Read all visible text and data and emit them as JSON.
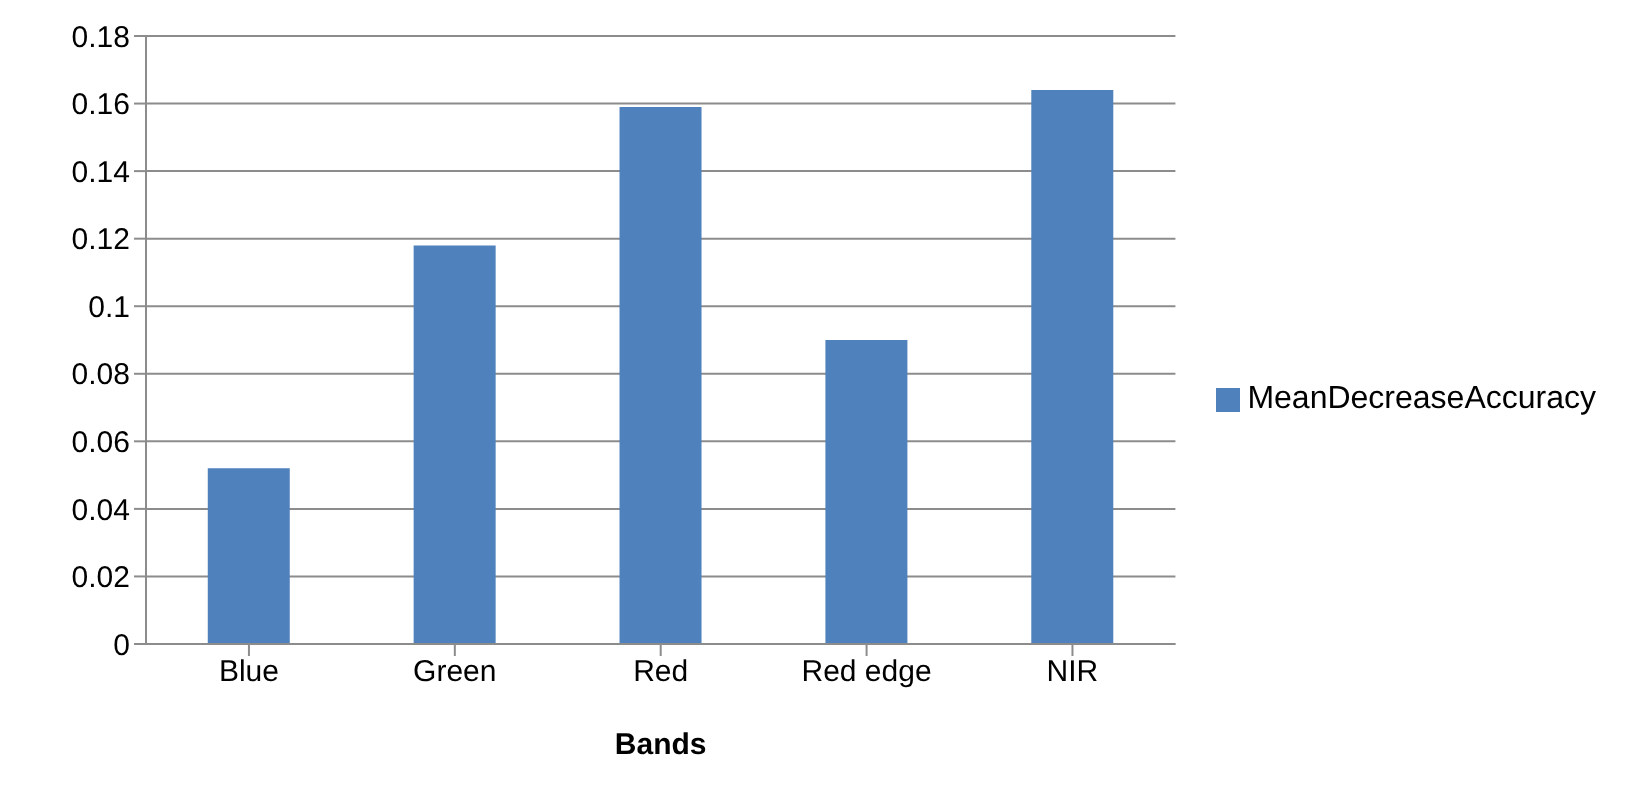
{
  "chart_data": {
    "type": "bar",
    "xlabel": "Bands",
    "categories": [
      "Blue",
      "Green",
      "Red",
      "Red edge",
      "NIR"
    ],
    "series": [
      {
        "name": "MeanDecreaseAccuracy",
        "color": "#4f81bd",
        "values": [
          0.052,
          0.118,
          0.159,
          0.09,
          0.164
        ]
      }
    ],
    "ylim": [
      0,
      0.18
    ],
    "yticks": [
      0,
      0.02,
      0.04,
      0.06,
      0.08,
      0.1,
      0.12,
      0.14,
      0.16,
      0.18
    ],
    "grid": "y",
    "legend": "right"
  }
}
